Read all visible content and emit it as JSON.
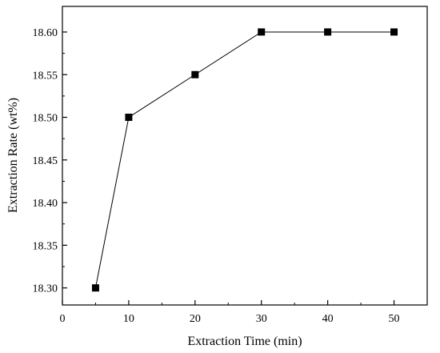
{
  "chart_data": {
    "type": "line",
    "title": "",
    "xlabel": "Extraction Time (min)",
    "ylabel": "Extraction Rate (wt%)",
    "xlim": [
      0,
      55
    ],
    "ylim": [
      18.28,
      18.63
    ],
    "xticks": [
      0,
      10,
      20,
      30,
      40,
      50
    ],
    "xtick_labels": [
      "0",
      "10",
      "20",
      "30",
      "40",
      "50"
    ],
    "yticks": [
      18.3,
      18.35,
      18.4,
      18.45,
      18.5,
      18.55,
      18.6
    ],
    "ytick_labels": [
      "18.30",
      "18.35",
      "18.40",
      "18.45",
      "18.50",
      "18.55",
      "18.60"
    ],
    "grid": false,
    "legend": "none",
    "marker": "square",
    "color": "#000000",
    "series": [
      {
        "x": [
          5,
          10,
          20,
          30,
          40,
          50
        ],
        "y": [
          18.3,
          18.5,
          18.55,
          18.6,
          18.6,
          18.6
        ]
      }
    ]
  }
}
